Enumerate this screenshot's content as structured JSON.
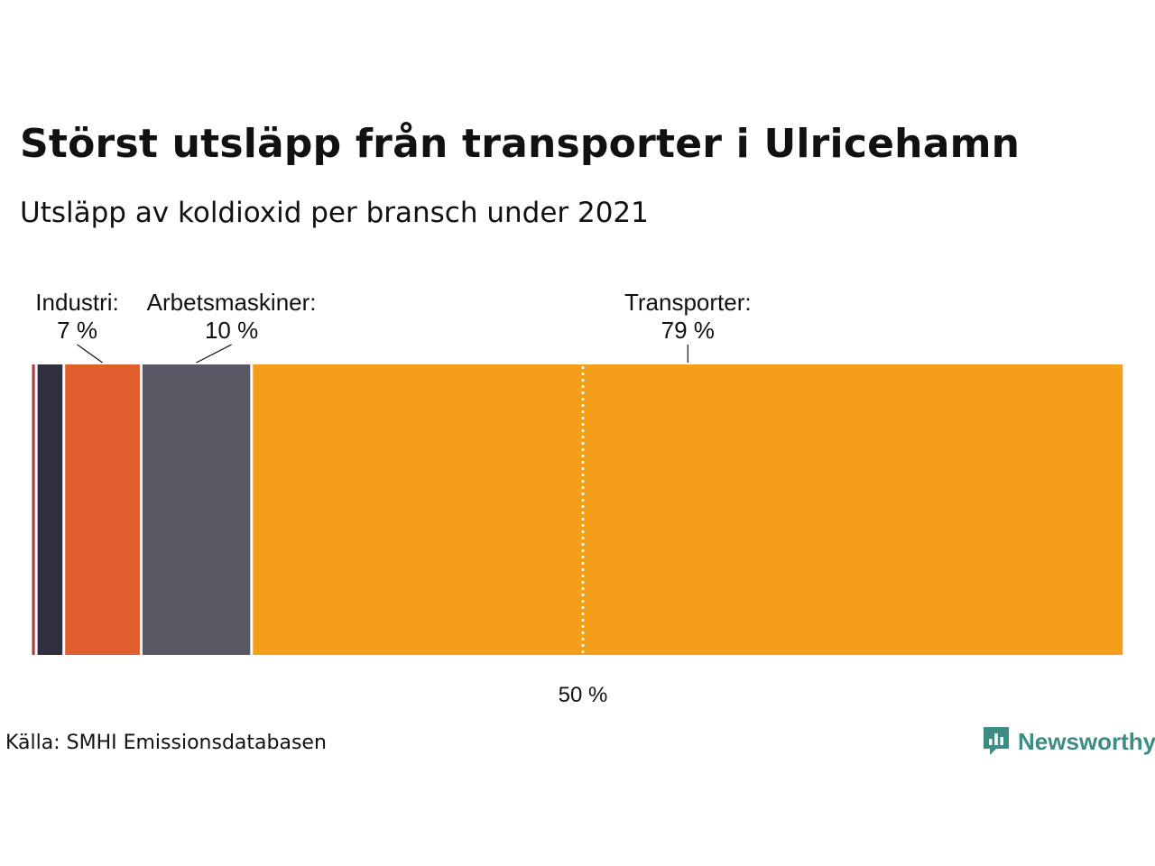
{
  "title": "Störst utsläpp från transporter i Ulricehamn",
  "subtitle": "Utsläpp av koldioxid per bransch under 2021",
  "source": "Källa: SMHI Emissionsdatabasen",
  "brand": {
    "name": "Newsworthy",
    "icon": "newsworthy-logo-icon",
    "color": "#3d8d84"
  },
  "chart_data": {
    "type": "bar",
    "orientation": "horizontal-stacked-100",
    "unit": "%",
    "xlim": [
      0,
      100
    ],
    "reference_line": {
      "value": 50,
      "label": "50 %"
    },
    "series": [
      {
        "value": 0.5,
        "color": "#b03a3e",
        "name": "",
        "label_name": "",
        "label_value": ""
      },
      {
        "value": 2.5,
        "color": "#302f3f",
        "name": "",
        "label_name": "",
        "label_value": ""
      },
      {
        "value": 7,
        "color": "#e05e2d",
        "name": "Industri",
        "label_name": "Industri:",
        "label_value": "7 %"
      },
      {
        "value": 10,
        "color": "#5b5866",
        "name": "Arbetsmaskiner",
        "label_name": "Arbetsmaskiner:",
        "label_value": "10 %"
      },
      {
        "value": 79,
        "color": "#f59e1a",
        "name": "Transporter",
        "label_name": "Transporter:",
        "label_value": "79 %"
      }
    ]
  }
}
